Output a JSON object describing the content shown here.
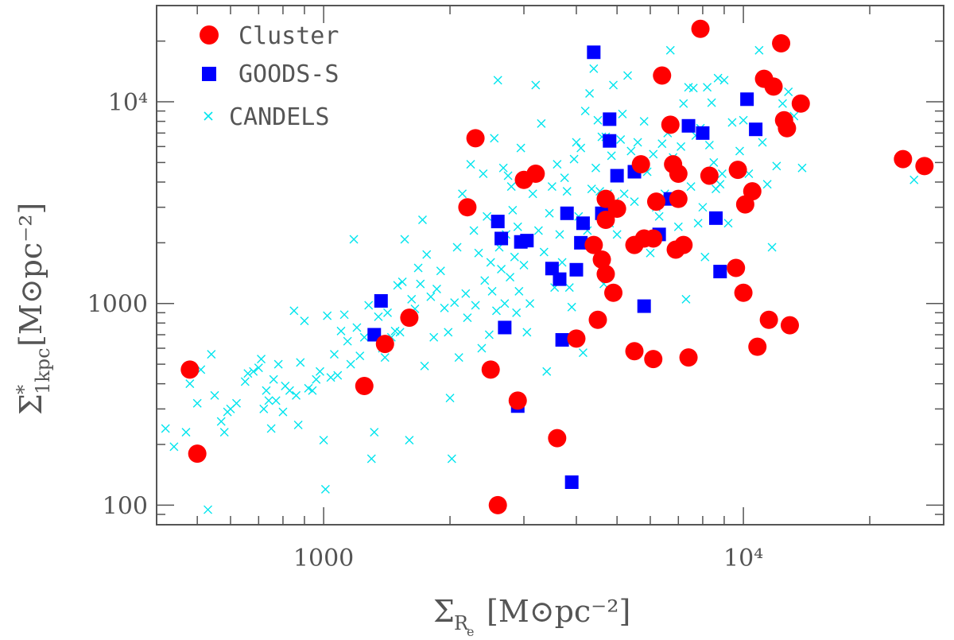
{
  "chart_data": {
    "type": "scatter",
    "xlabel": {
      "symbol": "Σ",
      "subscript": "R",
      "subsub": "e",
      "unit": "[M⊙pc⁻²]"
    },
    "ylabel": {
      "symbol": "Σ",
      "superscript": "*",
      "subscript": "1kpc",
      "unit": "[M⊙pc⁻²]"
    },
    "x_scale": "log",
    "y_scale": "log",
    "xlim": [
      400,
      30000
    ],
    "ylim": [
      80,
      30000
    ],
    "x_ticks": [
      {
        "value": 1000,
        "label": "1000"
      },
      {
        "value": 10000,
        "label": "10⁴"
      }
    ],
    "y_ticks": [
      {
        "value": 100,
        "label": "100"
      },
      {
        "value": 1000,
        "label": "1000"
      },
      {
        "value": 10000,
        "label": "10⁴"
      }
    ],
    "legend": {
      "position": "top-left",
      "entries": [
        "Cluster",
        "GOODS-S",
        "CANDELS"
      ]
    },
    "colors": {
      "Cluster": "#ff0000",
      "GOODS-S": "#0000ff",
      "CANDELS": "#00e5ee",
      "axis": "#555555"
    },
    "series": [
      {
        "name": "Cluster",
        "marker": "circle",
        "points": [
          [
            480,
            470
          ],
          [
            500,
            180
          ],
          [
            1250,
            390
          ],
          [
            1400,
            630
          ],
          [
            1600,
            850
          ],
          [
            2200,
            3000
          ],
          [
            2300,
            6600
          ],
          [
            2500,
            470
          ],
          [
            2600,
            100
          ],
          [
            2900,
            330
          ],
          [
            3000,
            4100
          ],
          [
            3200,
            4400
          ],
          [
            3600,
            215
          ],
          [
            4000,
            670
          ],
          [
            4400,
            1950
          ],
          [
            4500,
            830
          ],
          [
            4600,
            1650
          ],
          [
            4700,
            1400
          ],
          [
            4700,
            2600
          ],
          [
            4700,
            3300
          ],
          [
            4900,
            1130
          ],
          [
            5000,
            2950
          ],
          [
            5500,
            580
          ],
          [
            5500,
            1950
          ],
          [
            5700,
            4900
          ],
          [
            5800,
            2100
          ],
          [
            6100,
            530
          ],
          [
            6100,
            2100
          ],
          [
            6200,
            3200
          ],
          [
            6400,
            13500
          ],
          [
            6700,
            7700
          ],
          [
            6800,
            4900
          ],
          [
            6900,
            1850
          ],
          [
            7000,
            3300
          ],
          [
            7000,
            4400
          ],
          [
            7200,
            1950
          ],
          [
            7400,
            540
          ],
          [
            7900,
            23000
          ],
          [
            8300,
            4300
          ],
          [
            9600,
            1500
          ],
          [
            9700,
            4600
          ],
          [
            10000,
            1130
          ],
          [
            10100,
            3100
          ],
          [
            10500,
            3600
          ],
          [
            10800,
            610
          ],
          [
            11200,
            13000
          ],
          [
            11500,
            830
          ],
          [
            11800,
            11900
          ],
          [
            12300,
            19500
          ],
          [
            12500,
            8100
          ],
          [
            12700,
            7400
          ],
          [
            12900,
            780
          ],
          [
            13700,
            9800
          ],
          [
            24000,
            5200
          ],
          [
            27000,
            4800
          ]
        ]
      },
      {
        "name": "GOODS-S",
        "marker": "square",
        "points": [
          [
            1320,
            700
          ],
          [
            1370,
            1030
          ],
          [
            2600,
            2550
          ],
          [
            2650,
            2100
          ],
          [
            2700,
            760
          ],
          [
            2900,
            310
          ],
          [
            2950,
            2020
          ],
          [
            3050,
            2050
          ],
          [
            3500,
            1490
          ],
          [
            3650,
            1320
          ],
          [
            3700,
            660
          ],
          [
            3800,
            2800
          ],
          [
            3900,
            130
          ],
          [
            4000,
            1470
          ],
          [
            4100,
            2000
          ],
          [
            4150,
            2500
          ],
          [
            4400,
            17600
          ],
          [
            4600,
            2800
          ],
          [
            4800,
            8200
          ],
          [
            4800,
            6400
          ],
          [
            5000,
            4300
          ],
          [
            5500,
            4500
          ],
          [
            5800,
            970
          ],
          [
            6300,
            2200
          ],
          [
            6700,
            3300
          ],
          [
            7400,
            7600
          ],
          [
            8000,
            7000
          ],
          [
            8600,
            2650
          ],
          [
            8800,
            1440
          ],
          [
            10200,
            10300
          ],
          [
            10700,
            7300
          ]
        ]
      },
      {
        "name": "CANDELS",
        "marker": "cross",
        "points": [
          [
            420,
            240
          ],
          [
            440,
            195
          ],
          [
            470,
            230
          ],
          [
            480,
            400
          ],
          [
            500,
            320
          ],
          [
            510,
            470
          ],
          [
            530,
            95
          ],
          [
            540,
            560
          ],
          [
            550,
            350
          ],
          [
            570,
            260
          ],
          [
            580,
            230
          ],
          [
            590,
            290
          ],
          [
            600,
            300
          ],
          [
            620,
            320
          ],
          [
            650,
            410
          ],
          [
            660,
            450
          ],
          [
            680,
            460
          ],
          [
            700,
            480
          ],
          [
            710,
            530
          ],
          [
            720,
            300
          ],
          [
            730,
            370
          ],
          [
            740,
            330
          ],
          [
            750,
            240
          ],
          [
            760,
            420
          ],
          [
            770,
            330
          ],
          [
            780,
            500
          ],
          [
            800,
            290
          ],
          [
            810,
            390
          ],
          [
            830,
            370
          ],
          [
            850,
            920
          ],
          [
            860,
            350
          ],
          [
            870,
            250
          ],
          [
            880,
            510
          ],
          [
            900,
            820
          ],
          [
            920,
            380
          ],
          [
            940,
            370
          ],
          [
            960,
            420
          ],
          [
            980,
            460
          ],
          [
            1000,
            210
          ],
          [
            1010,
            120
          ],
          [
            1020,
            870
          ],
          [
            1040,
            430
          ],
          [
            1060,
            560
          ],
          [
            1080,
            440
          ],
          [
            1100,
            730
          ],
          [
            1120,
            880
          ],
          [
            1140,
            650
          ],
          [
            1160,
            500
          ],
          [
            1180,
            2080
          ],
          [
            1200,
            760
          ],
          [
            1220,
            550
          ],
          [
            1250,
            680
          ],
          [
            1280,
            980
          ],
          [
            1300,
            170
          ],
          [
            1320,
            230
          ],
          [
            1350,
            860
          ],
          [
            1380,
            600
          ],
          [
            1400,
            540
          ],
          [
            1420,
            900
          ],
          [
            1450,
            680
          ],
          [
            1480,
            730
          ],
          [
            1500,
            1230
          ],
          [
            1520,
            720
          ],
          [
            1540,
            1280
          ],
          [
            1560,
            2080
          ],
          [
            1600,
            210
          ],
          [
            1620,
            1050
          ],
          [
            1650,
            940
          ],
          [
            1680,
            1500
          ],
          [
            1700,
            1250
          ],
          [
            1720,
            2600
          ],
          [
            1740,
            490
          ],
          [
            1760,
            1750
          ],
          [
            1800,
            1080
          ],
          [
            1830,
            680
          ],
          [
            1860,
            1180
          ],
          [
            1900,
            1450
          ],
          [
            1940,
            950
          ],
          [
            1980,
            720
          ],
          [
            2000,
            340
          ],
          [
            2020,
            170
          ],
          [
            2050,
            1010
          ],
          [
            2080,
            1900
          ],
          [
            2100,
            540
          ],
          [
            2140,
            3500
          ],
          [
            2180,
            1120
          ],
          [
            2200,
            850
          ],
          [
            2240,
            4900
          ],
          [
            2280,
            2300
          ],
          [
            2300,
            980
          ],
          [
            2340,
            1780
          ],
          [
            2380,
            600
          ],
          [
            2400,
            4400
          ],
          [
            2420,
            1300
          ],
          [
            2450,
            2700
          ],
          [
            2480,
            700
          ],
          [
            2500,
            1600
          ],
          [
            2520,
            1150
          ],
          [
            2550,
            6600
          ],
          [
            2580,
            920
          ],
          [
            2600,
            12800
          ],
          [
            2620,
            1900
          ],
          [
            2650,
            1480
          ],
          [
            2680,
            4700
          ],
          [
            2700,
            1000
          ],
          [
            2720,
            2200
          ],
          [
            2750,
            4300
          ],
          [
            2780,
            1350
          ],
          [
            2800,
            3800
          ],
          [
            2820,
            2900
          ],
          [
            2850,
            1700
          ],
          [
            2880,
            900
          ],
          [
            2900,
            2400
          ],
          [
            2920,
            1150
          ],
          [
            2950,
            5900
          ],
          [
            2980,
            4000
          ],
          [
            3000,
            1550
          ],
          [
            3050,
            720
          ],
          [
            3100,
            1000
          ],
          [
            3150,
            3500
          ],
          [
            3200,
            12100
          ],
          [
            3250,
            2300
          ],
          [
            3300,
            7800
          ],
          [
            3350,
            1800
          ],
          [
            3400,
            460
          ],
          [
            3450,
            2800
          ],
          [
            3500,
            3800
          ],
          [
            3550,
            1200
          ],
          [
            3600,
            4900
          ],
          [
            3650,
            2200
          ],
          [
            3700,
            1600
          ],
          [
            3750,
            4200
          ],
          [
            3800,
            3600
          ],
          [
            3850,
            1200
          ],
          [
            3900,
            960
          ],
          [
            3950,
            5200
          ],
          [
            4000,
            6300
          ],
          [
            4050,
            2700
          ],
          [
            4100,
            5900
          ],
          [
            4150,
            570
          ],
          [
            4200,
            9000
          ],
          [
            4250,
            2300
          ],
          [
            4300,
            11000
          ],
          [
            4350,
            3700
          ],
          [
            4400,
            14600
          ],
          [
            4450,
            4700
          ],
          [
            4500,
            8100
          ],
          [
            4550,
            3600
          ],
          [
            4600,
            6700
          ],
          [
            4650,
            1250
          ],
          [
            4700,
            6700
          ],
          [
            4750,
            3500
          ],
          [
            4800,
            2500
          ],
          [
            4850,
            5400
          ],
          [
            4900,
            12100
          ],
          [
            4950,
            3200
          ],
          [
            5000,
            2200
          ],
          [
            5050,
            4300
          ],
          [
            5100,
            6500
          ],
          [
            5150,
            8700
          ],
          [
            5200,
            3500
          ],
          [
            5300,
            13500
          ],
          [
            5400,
            5700
          ],
          [
            5500,
            3200
          ],
          [
            5600,
            6300
          ],
          [
            5700,
            2000
          ],
          [
            5800,
            8000
          ],
          [
            5900,
            4500
          ],
          [
            6000,
            1780
          ],
          [
            6100,
            5500
          ],
          [
            6200,
            3000
          ],
          [
            6300,
            2700
          ],
          [
            6400,
            6200
          ],
          [
            6500,
            3500
          ],
          [
            6600,
            7000
          ],
          [
            6700,
            18000
          ],
          [
            6800,
            5300
          ],
          [
            6900,
            4600
          ],
          [
            7000,
            2400
          ],
          [
            7100,
            6000
          ],
          [
            7200,
            9800
          ],
          [
            7300,
            1050
          ],
          [
            7400,
            11800
          ],
          [
            7500,
            3800
          ],
          [
            7600,
            11700
          ],
          [
            7700,
            6800
          ],
          [
            7800,
            2500
          ],
          [
            7900,
            7400
          ],
          [
            8000,
            3000
          ],
          [
            8100,
            1700
          ],
          [
            8200,
            11800
          ],
          [
            8300,
            6100
          ],
          [
            8400,
            9900
          ],
          [
            8500,
            5000
          ],
          [
            8600,
            3700
          ],
          [
            8700,
            13100
          ],
          [
            8800,
            3900
          ],
          [
            8900,
            4400
          ],
          [
            9000,
            12800
          ],
          [
            9200,
            2500
          ],
          [
            9400,
            7900
          ],
          [
            9600,
            1480
          ],
          [
            9800,
            5700
          ],
          [
            10000,
            8100
          ],
          [
            10300,
            4400
          ],
          [
            10600,
            3600
          ],
          [
            10900,
            18000
          ],
          [
            11100,
            6300
          ],
          [
            11400,
            3900
          ],
          [
            11700,
            1900
          ],
          [
            12000,
            4800
          ],
          [
            12400,
            9800
          ],
          [
            12800,
            11200
          ],
          [
            13200,
            8500
          ],
          [
            13800,
            4700
          ],
          [
            25500,
            4100
          ]
        ]
      }
    ]
  }
}
